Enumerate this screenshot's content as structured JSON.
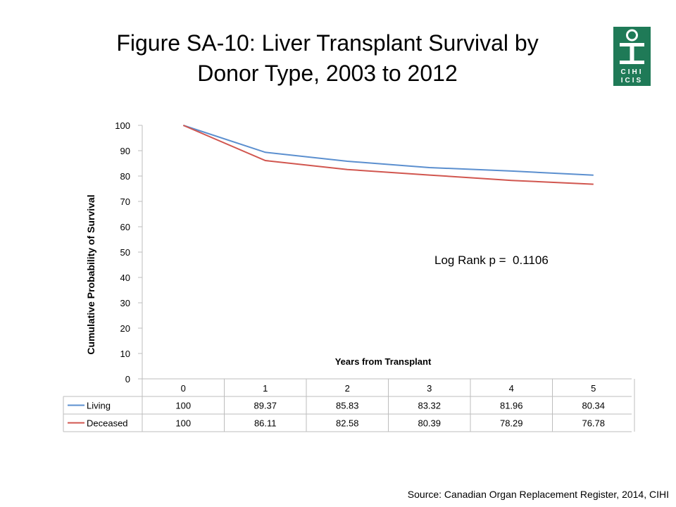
{
  "title_line1": "Figure SA-10: Liver Transplant Survival by",
  "title_line2": "Donor Type, 2003 to 2012",
  "logo": {
    "top": "CIHI",
    "bottom": "ICIS"
  },
  "source": "Source: Canadian Organ Replacement Register, 2014, CIHI",
  "chart_data": {
    "type": "line",
    "x": [
      0,
      1,
      2,
      3,
      4,
      5
    ],
    "categories": [
      "0",
      "1",
      "2",
      "3",
      "4",
      "5"
    ],
    "series": [
      {
        "name": "Living",
        "color": "#5b8fcf",
        "values": [
          100,
          89.37,
          85.83,
          83.32,
          81.96,
          80.34
        ],
        "labels": [
          "100",
          "89.37",
          "85.83",
          "83.32",
          "81.96",
          "80.34"
        ]
      },
      {
        "name": "Deceased",
        "color": "#d1564f",
        "values": [
          100,
          86.11,
          82.58,
          80.39,
          78.29,
          76.78
        ],
        "labels": [
          "100",
          "86.11",
          "82.58",
          "80.39",
          "78.29",
          "76.78"
        ]
      }
    ],
    "xlabel": "Years from Transplant",
    "ylabel": "Cumulative Probability of Survival",
    "ylim": [
      0,
      100
    ],
    "yticks": [
      0,
      10,
      20,
      30,
      40,
      50,
      60,
      70,
      80,
      90,
      100
    ],
    "annotation": "Log Rank p =  0.1106",
    "grid": false,
    "legend": "data-table"
  }
}
